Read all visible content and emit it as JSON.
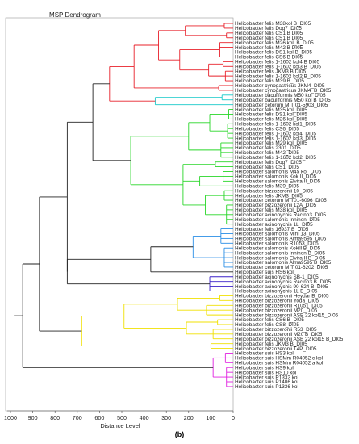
{
  "window": {
    "title": "MSP Dendrogram"
  },
  "x_axis": {
    "label": "Distance Level",
    "ticks": [
      "1000",
      "900",
      "800",
      "700",
      "600",
      "500",
      "400",
      "300",
      "200",
      "100",
      "0"
    ],
    "range": [
      1000,
      0
    ]
  },
  "caption": "(b)",
  "cluster_colors": {
    "red": "#e8202a",
    "dark": "#222222",
    "teal": "#14c8c8",
    "green": "#28d628",
    "blue": "#2a8ee6",
    "purple": "#3a20c8",
    "yellow": "#f0e000",
    "magenta": "#e020e0"
  },
  "leaves": [
    {
      "label": "Helicobacter felis M38kol B_DI05",
      "cluster": "red"
    },
    {
      "label": "Helicobacter felis Dog7_DI05",
      "cluster": "red"
    },
    {
      "label": "Helicobacter felis CS1 B DI05",
      "cluster": "red"
    },
    {
      "label": "Helicobacter felis CS1 B DI05",
      "cluster": "red"
    },
    {
      "label": "Helicobacter felis M26 kol_B_DI05",
      "cluster": "red"
    },
    {
      "label": "Helicobacter felis M42 B DI05",
      "cluster": "red"
    },
    {
      "label": "Helicobacter felis DS1 kol B_DI05",
      "cluster": "red"
    },
    {
      "label": "Helicobacter felis CS6 B DI05",
      "cluster": "red"
    },
    {
      "label": "Helicobacter felis 1-1602 kol4 B DI05",
      "cluster": "red"
    },
    {
      "label": "Helicobacter felis 1-1602 kol3 B_DI05",
      "cluster": "red"
    },
    {
      "label": "Helicobacter felis JKM3 B DI05",
      "cluster": "red"
    },
    {
      "label": "Helicobacter felis 1-1602 kol2 B_DI05",
      "cluster": "red"
    },
    {
      "label": "Helicobacter felis M39 B_DI05",
      "cluster": "red"
    },
    {
      "label": "Helicobacter cynogastricus JKM4_DI05",
      "cluster": "red"
    },
    {
      "label": "Helicobacter cynogastricus JKM4_B_DI05",
      "cluster": "red"
    },
    {
      "label": "Helicobacter baculiformis M50 kol_DI05",
      "cluster": "teal"
    },
    {
      "label": "Helicobacter baculiformis M50 kol B_DI05",
      "cluster": "teal"
    },
    {
      "label": "Helicobacter cetorum MIT 01-5903_DI05",
      "cluster": "dark"
    },
    {
      "label": "Helicobacter felis M35 kol_DI05",
      "cluster": "green"
    },
    {
      "label": "Helicobacter felis DS1 kol_DI05",
      "cluster": "green"
    },
    {
      "label": "Helicobacter felis M26 kol_DI05",
      "cluster": "green"
    },
    {
      "label": "Helicobacter felis 1-1602 kol1_DI05",
      "cluster": "green"
    },
    {
      "label": "Helicobacter felis CS6_DI05",
      "cluster": "green"
    },
    {
      "label": "Helicobacter felis 1-1602 kol4_DI05",
      "cluster": "green"
    },
    {
      "label": "Helicobacter felis 1-1602 kol3_DI05",
      "cluster": "green"
    },
    {
      "label": "Helicobacter felis M29 kol_DI05",
      "cluster": "green"
    },
    {
      "label": "Helicobacter felis 2301_DI05",
      "cluster": "green"
    },
    {
      "label": "Helicobacter felis M42_DI05",
      "cluster": "green"
    },
    {
      "label": "Helicobacter felis 1-1602 kol2_DI05",
      "cluster": "green"
    },
    {
      "label": "Helicobacter felis Dog7_DI05",
      "cluster": "green"
    },
    {
      "label": "Helicobacter felis CS1_DI05",
      "cluster": "green"
    },
    {
      "label": "Helicobacter salomonis M45 kol_DI05",
      "cluster": "green"
    },
    {
      "label": "Helicobacter salomonis Kok II_DI05",
      "cluster": "green"
    },
    {
      "label": "Helicobacter salomonis Elvira II_DI05",
      "cluster": "green"
    },
    {
      "label": "Helicobacter felis M39_DI05",
      "cluster": "green"
    },
    {
      "label": "Helicobacter bizzozeronii 10_DI05",
      "cluster": "green"
    },
    {
      "label": "Helicobacter felis JKM3_DI05",
      "cluster": "green"
    },
    {
      "label": "Helicobacter cetorum MIT01-6096_DI05",
      "cluster": "green"
    },
    {
      "label": "Helicobacter bizzozeronii 12A_DI05",
      "cluster": "green"
    },
    {
      "label": "Helicobacter felis M38 kol_DI05",
      "cluster": "green"
    },
    {
      "label": "Helicobacter acinonychis Racino3_DI05",
      "cluster": "green"
    },
    {
      "label": "Helicobacter salomonis Inninen_DI05",
      "cluster": "green"
    },
    {
      "label": "Helicobacter acinonychis 1L_DI05",
      "cluster": "green"
    },
    {
      "label": "Helicobacter felis 16937 B_DI05",
      "cluster": "blue"
    },
    {
      "label": "Helicobacter salomonis Mini 13_DI05",
      "cluster": "blue"
    },
    {
      "label": "Helicobacter salomonis Alma9595_DI05",
      "cluster": "blue"
    },
    {
      "label": "Helicobacter salomonis R1053_DI05",
      "cluster": "blue"
    },
    {
      "label": "Helicobacter salomonis Kokill B_DI05",
      "cluster": "blue"
    },
    {
      "label": "Helicobacter salomonis Inninen B_DI05",
      "cluster": "blue"
    },
    {
      "label": "Helicobacter salomonis Elvira II B_DI05",
      "cluster": "blue"
    },
    {
      "label": "Helicobacter salomonis Alma9595 B_DI05",
      "cluster": "blue"
    },
    {
      "label": "Helicobacter cetorum MIT 01-6202_DI05",
      "cluster": "blue"
    },
    {
      "label": "Helicobacter suis HS6 kol",
      "cluster": "dark"
    },
    {
      "label": "Helicobacter acinonychis SB-1_DI05",
      "cluster": "purple"
    },
    {
      "label": "Helicobacter acinonychis Racino3 B_DI05",
      "cluster": "purple"
    },
    {
      "label": "Helicobacter acinonychis 90-624 B_DI05",
      "cluster": "purple"
    },
    {
      "label": "Helicobacter acinonychis 1L B_DI05",
      "cluster": "purple"
    },
    {
      "label": "Helicobacter bizzozeronii Heydar B_DI05",
      "cluster": "yellow"
    },
    {
      "label": "Helicobacter bizzozeronii Yoda_DI05",
      "cluster": "yellow"
    },
    {
      "label": "Helicobacter bizzozeronii R1051_DI05",
      "cluster": "yellow"
    },
    {
      "label": "Helicobacter bizzozeronii M20_DI05",
      "cluster": "yellow"
    },
    {
      "label": "Helicobacter bizzozeronii ASB 22 kol15_DI05",
      "cluster": "yellow"
    },
    {
      "label": "Helicobacter felis CS6 B_DI05",
      "cluster": "yellow"
    },
    {
      "label": "Helicobacter felis CS8_DI05",
      "cluster": "yellow"
    },
    {
      "label": "Helicobacter bizzozeronii R53_DI05",
      "cluster": "yellow"
    },
    {
      "label": "Helicobacter bizzozeronii M20 B_DI05",
      "cluster": "yellow"
    },
    {
      "label": "Helicobacter bizzozeronii ASB 22 kol15 B_DI05",
      "cluster": "yellow"
    },
    {
      "label": "Helicobacter felis JKM3 B_DI05",
      "cluster": "yellow"
    },
    {
      "label": "Helicobacter bizzozeronii T4P_DI05",
      "cluster": "yellow"
    },
    {
      "label": "Helicobacter suis HS3 kol",
      "cluster": "magenta"
    },
    {
      "label": "Helicobacter suis HSMm R04052 c kol",
      "cluster": "magenta"
    },
    {
      "label": "Helicobacter suis HSMm R04052 a kol",
      "cluster": "magenta"
    },
    {
      "label": "Helicobacter suis HS9 kol",
      "cluster": "magenta"
    },
    {
      "label": "Helicobacter suis HS10 kol",
      "cluster": "magenta"
    },
    {
      "label": "Helicobacter suis P1332 kol",
      "cluster": "magenta"
    },
    {
      "label": "Helicobacter suis P1406 kol",
      "cluster": "magenta"
    },
    {
      "label": "Helicobacter suis P1336 kol",
      "cluster": "magenta"
    }
  ]
}
